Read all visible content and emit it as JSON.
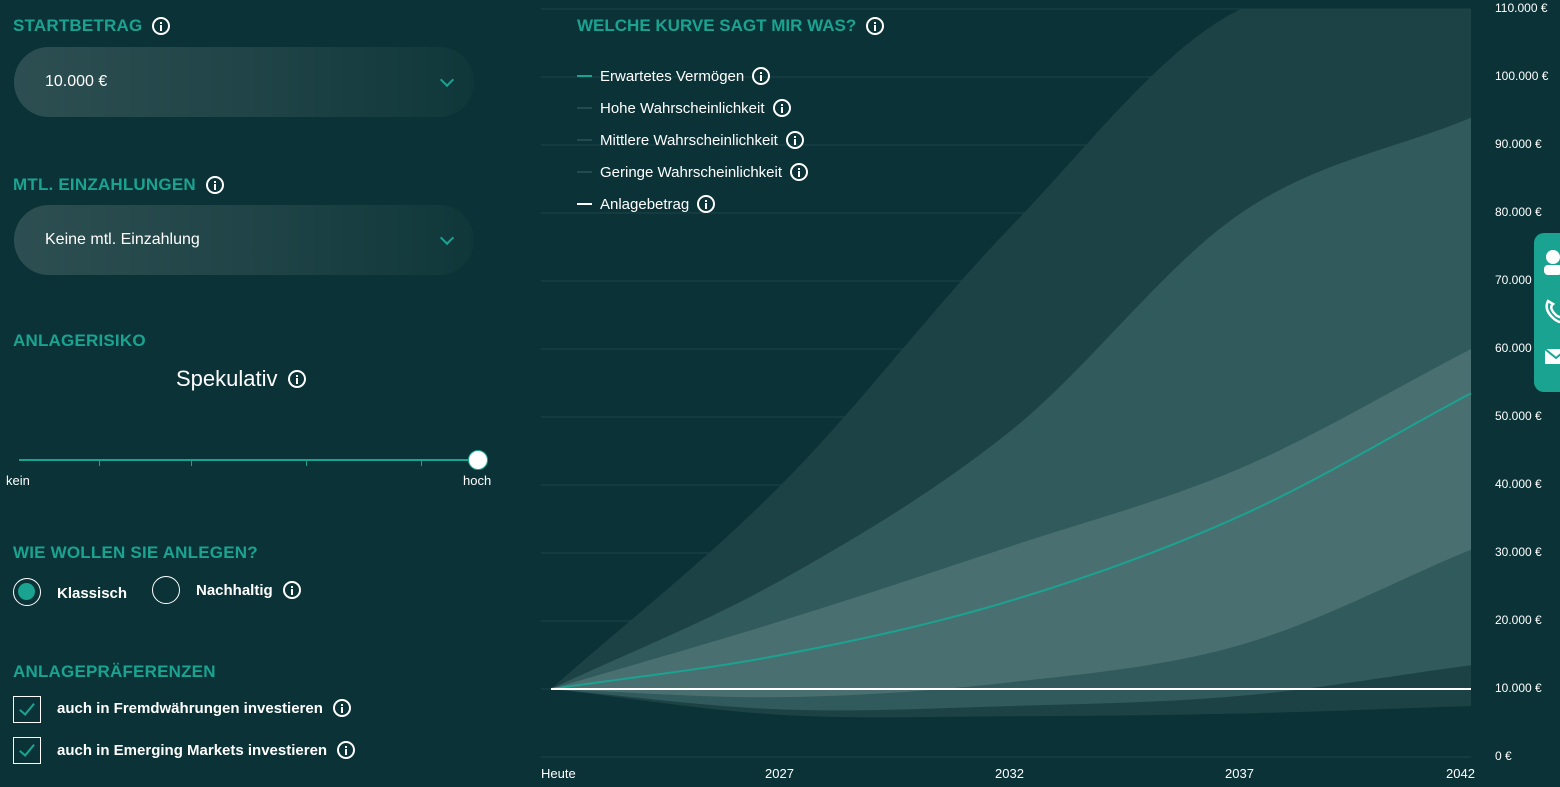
{
  "startbetrag": {
    "title": "STARTBETRAG",
    "value": "10.000 €"
  },
  "einzahlungen": {
    "title": "MTL. EINZAHLUNGEN",
    "value": "Keine mtl. Einzahlung"
  },
  "risiko": {
    "title": "ANLAGERISIKO",
    "value": "Spekulativ",
    "min_label": "kein",
    "max_label": "hoch",
    "level": 1.0
  },
  "anlageart": {
    "title": "WIE WOLLEN SIE ANLEGEN?",
    "options": [
      "Klassisch",
      "Nachhaltig"
    ],
    "selected": "Klassisch"
  },
  "praeferenzen": {
    "title": "ANLAGEPRÄFERENZEN",
    "items": [
      {
        "label": "auch in Fremdwährungen investieren",
        "checked": true
      },
      {
        "label": "auch in Emerging Markets investieren",
        "checked": true
      }
    ]
  },
  "legend": {
    "title": "WELCHE KURVE SAGT MIR WAS?",
    "items": [
      {
        "label": "Erwartetes Vermögen",
        "color": "#1aa391"
      },
      {
        "label": "Hohe Wahrscheinlichkeit",
        "color": "#244a4d"
      },
      {
        "label": "Mittlere Wahrscheinlichkeit",
        "color": "#244a4d"
      },
      {
        "label": "Geringe Wahrscheinlichkeit",
        "color": "#244a4d"
      },
      {
        "label": "Anlagebetrag",
        "color": "#ffffff"
      }
    ]
  },
  "colors": {
    "accent": "#1aa391",
    "background": "#0b3337"
  },
  "chart_data": {
    "type": "area",
    "x_labels": [
      "Heute",
      "2027",
      "2032",
      "2037",
      "2042"
    ],
    "x": [
      2022,
      2027,
      2032,
      2037,
      2042
    ],
    "ylim": [
      0,
      110000
    ],
    "y_ticks": [
      0,
      10000,
      20000,
      30000,
      40000,
      50000,
      60000,
      70000,
      80000,
      90000,
      100000,
      110000
    ],
    "y_tick_labels": [
      "0 €",
      "10.000 €",
      "20.000 €",
      "30.000 €",
      "40.000 €",
      "50.000 €",
      "60.000 €",
      "70.000 €",
      "80.000 €",
      "90.000 €",
      "100.000 €",
      "110.000 €"
    ],
    "grid": true,
    "series": [
      {
        "name": "Erwartetes Vermögen",
        "values": [
          10000,
          15000,
          23000,
          35500,
          53500
        ]
      },
      {
        "name": "Anlagebetrag",
        "values": [
          10000,
          10000,
          10000,
          10000,
          10000
        ]
      }
    ],
    "bands": [
      {
        "name": "Geringe Wahrscheinlichkeit",
        "lower": [
          10000,
          6200,
          6000,
          6400,
          7500
        ],
        "upper": [
          10000,
          40000,
          78000,
          110000,
          110000
        ]
      },
      {
        "name": "Mittlere Wahrscheinlichkeit",
        "lower": [
          10000,
          7000,
          7500,
          9000,
          13500
        ],
        "upper": [
          10000,
          26000,
          48000,
          80000,
          94000
        ]
      },
      {
        "name": "Hohe Wahrscheinlichkeit",
        "lower": [
          10000,
          8800,
          11000,
          16500,
          30500
        ],
        "upper": [
          10000,
          20000,
          31000,
          42500,
          60000
        ]
      }
    ]
  }
}
